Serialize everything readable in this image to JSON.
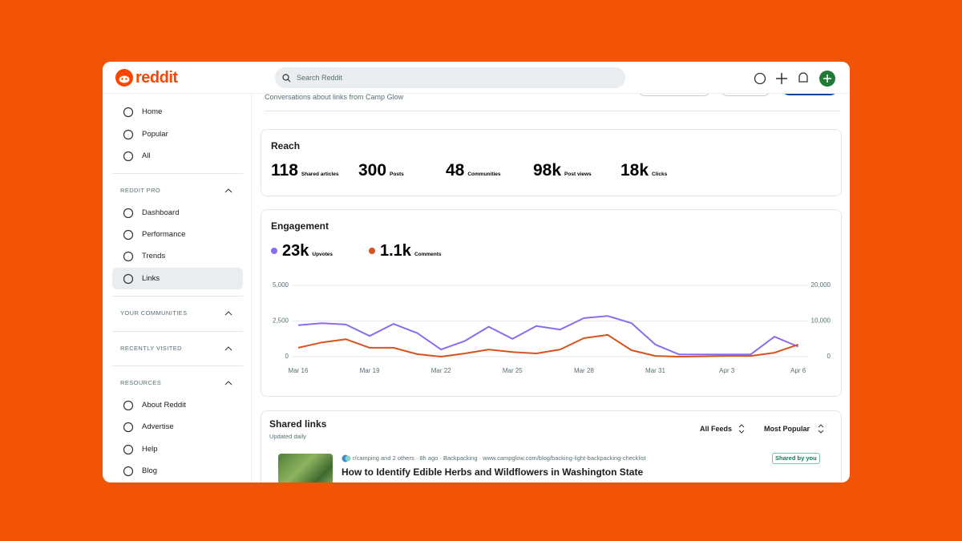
{
  "header": {
    "logo": "reddit",
    "search_placeholder": "Search Reddit"
  },
  "sidebar": {
    "nav": [
      "Home",
      "Popular",
      "All"
    ],
    "reddit_pro": {
      "title": "REDDIT PRO",
      "items": [
        "Dashboard",
        "Performance",
        "Trends",
        "Links"
      ]
    },
    "your_communities": {
      "title": "YOUR COMMUNITIES"
    },
    "recently_visited": {
      "title": "RECENTLY VISITED"
    },
    "resources": {
      "title": "RESOURCES",
      "items": [
        "About Reddit",
        "Advertise",
        "Help",
        "Blog"
      ]
    }
  },
  "page": {
    "subtitle": "Conversations about links from Camp Glow"
  },
  "reach": {
    "title": "Reach",
    "stats": [
      {
        "value": 118,
        "label": "Shared articles"
      },
      {
        "value": 300,
        "label": "Posts"
      },
      {
        "value": 48,
        "label": "Communities"
      },
      {
        "value": "98k",
        "label": "Post views"
      },
      {
        "value": "18k",
        "label": "Clicks"
      }
    ]
  },
  "engagement": {
    "title": "Engagement",
    "totals": [
      "23k",
      "1.1k"
    ]
  },
  "chart_data": {
    "type": "line",
    "categories": [
      "Mar 16",
      null,
      null,
      "Mar 19",
      null,
      null,
      "Mar 22",
      null,
      null,
      "Mar 25",
      null,
      null,
      "Mar 28",
      null,
      null,
      "Mar 31",
      null,
      null,
      "Apr 3",
      null,
      null,
      "Apr 6"
    ],
    "series": [
      {
        "name": "Upvotes",
        "color": "#8b6cf0",
        "values": [
          2200,
          2350,
          2250,
          1450,
          2300,
          1650,
          500,
          1100,
          2100,
          1250,
          2150,
          1900,
          2700,
          2850,
          2350,
          850,
          150,
          150,
          150,
          150,
          1400,
          700
        ]
      },
      {
        "name": "Comments",
        "color": "#d4531f",
        "axis": "y2",
        "values": [
          2500,
          4000,
          4900,
          2500,
          2500,
          700,
          0,
          900,
          2000,
          1300,
          900,
          2000,
          5200,
          6100,
          1800,
          200,
          0,
          100,
          200,
          200,
          1100,
          3400
        ]
      }
    ],
    "ylim": [
      0,
      5000
    ],
    "yticks": [
      0,
      {
        "value": 2500,
        "label": "2,500"
      },
      {
        "value": 5000,
        "label": "5,000"
      }
    ],
    "y2lim": [
      0,
      20000
    ],
    "y2ticks": [
      0,
      {
        "value": 10000,
        "label": "10,000"
      },
      {
        "value": 20000,
        "label": "20,000"
      }
    ],
    "grid": true
  },
  "shared_links": {
    "title": "Shared links",
    "subtitle": "Updated daily",
    "filters": [
      "All Feeds",
      "Most Popular"
    ],
    "items": [
      {
        "meta": "r/camping and 2 others · 8h ago · Backpacking · www.campglow.com/blog/backing-light-backpacking-checklist",
        "badge": "Shared by you",
        "title": "How to Identify Edible Herbs and Wildflowers in Washington State"
      }
    ]
  }
}
